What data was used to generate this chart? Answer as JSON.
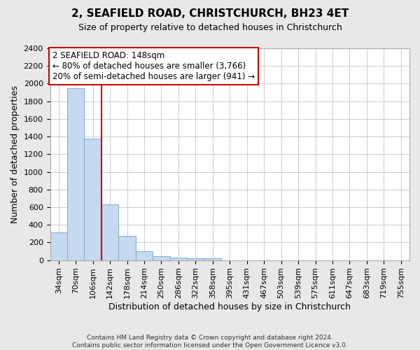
{
  "title": "2, SEAFIELD ROAD, CHRISTCHURCH, BH23 4ET",
  "subtitle": "Size of property relative to detached houses in Christchurch",
  "xlabel": "Distribution of detached houses by size in Christchurch",
  "ylabel": "Number of detached properties",
  "footnote": "Contains HM Land Registry data © Crown copyright and database right 2024.\nContains public sector information licensed under the Open Government Licence v3.0.",
  "bin_labels": [
    "34sqm",
    "70sqm",
    "106sqm",
    "142sqm",
    "178sqm",
    "214sqm",
    "250sqm",
    "286sqm",
    "322sqm",
    "358sqm",
    "395sqm",
    "431sqm",
    "467sqm",
    "503sqm",
    "539sqm",
    "575sqm",
    "611sqm",
    "647sqm",
    "683sqm",
    "719sqm",
    "755sqm"
  ],
  "bar_values": [
    318,
    1950,
    1380,
    630,
    275,
    100,
    45,
    30,
    22,
    18,
    0,
    0,
    0,
    0,
    0,
    0,
    0,
    0,
    0,
    0,
    0
  ],
  "bar_color": "#c5d9ef",
  "bar_edge_color": "#7badd4",
  "vline_x": 3,
  "vline_color": "#cc0000",
  "annotation_text": "2 SEAFIELD ROAD: 148sqm\n← 80% of detached houses are smaller (3,766)\n20% of semi-detached houses are larger (941) →",
  "annotation_box_color": "#ffffff",
  "annotation_box_edge": "#cc0000",
  "ylim": [
    0,
    2400
  ],
  "yticks": [
    0,
    200,
    400,
    600,
    800,
    1000,
    1200,
    1400,
    1600,
    1800,
    2000,
    2200,
    2400
  ],
  "bg_color": "#e8e8e8",
  "plot_bg_color": "#ffffff",
  "grid_color": "#cccccc",
  "title_fontsize": 11,
  "subtitle_fontsize": 9,
  "ylabel_fontsize": 9,
  "xlabel_fontsize": 9,
  "tick_fontsize": 8,
  "annot_fontsize": 8.5,
  "footnote_fontsize": 6.5
}
